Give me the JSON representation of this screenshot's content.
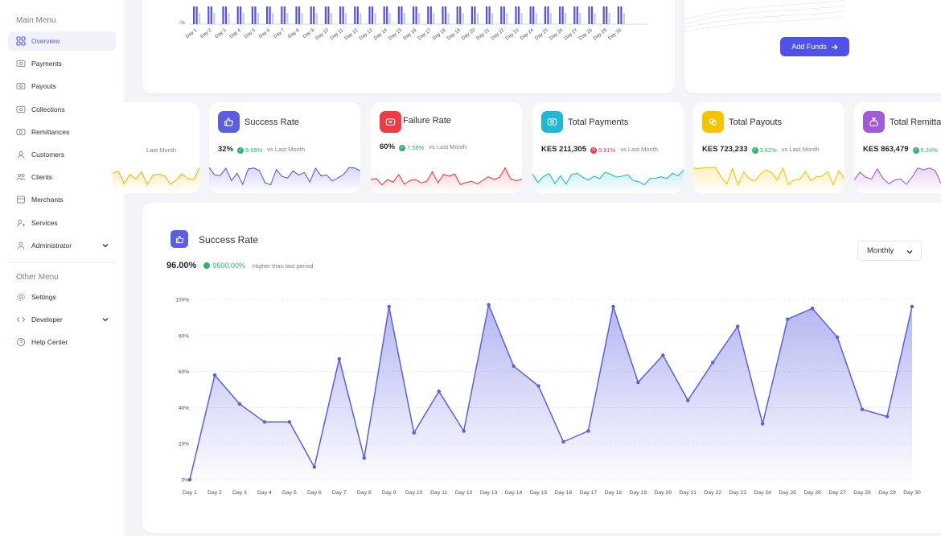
{
  "sidebar": {
    "main_menu_label": "Main Menu",
    "other_menu_label": "Other Menu",
    "items": [
      {
        "label": "Overview",
        "icon": "grid-icon"
      },
      {
        "label": "Payments",
        "icon": "payments-icon"
      },
      {
        "label": "Payouts",
        "icon": "payouts-icon"
      },
      {
        "label": "Collections",
        "icon": "collections-icon"
      },
      {
        "label": "Remittances",
        "icon": "remittances-icon"
      },
      {
        "label": "Customers",
        "icon": "customers-icon"
      },
      {
        "label": "Clients",
        "icon": "clients-icon"
      },
      {
        "label": "Merchants",
        "icon": "merchants-icon"
      },
      {
        "label": "Services",
        "icon": "services-icon"
      },
      {
        "label": "Administrator",
        "icon": "user-icon"
      }
    ],
    "other_items": [
      {
        "label": "Settings",
        "icon": "gear-icon"
      },
      {
        "label": "Developer",
        "icon": "code-icon"
      },
      {
        "label": "Help Center",
        "icon": "help-icon"
      }
    ]
  },
  "top_chart": {
    "y_tick": "0k",
    "days": [
      "Day 1",
      "Day 2",
      "Day 3",
      "Day 4",
      "Day 5",
      "Day 6",
      "Day 7",
      "Day 8",
      "Day 9",
      "Day 10",
      "Day 11",
      "Day 12",
      "Day 13",
      "Day 14",
      "Day 15",
      "Day 16",
      "Day 17",
      "Day 18",
      "Day 19",
      "Day 20",
      "Day 21",
      "Day 22",
      "Day 23",
      "Day 24",
      "Day 25",
      "Day 26",
      "Day 27",
      "Day 28",
      "Day 29",
      "Day 30"
    ]
  },
  "add_funds_label": "Add Funds",
  "stats": [
    {
      "title": "",
      "metric": "",
      "delta": "",
      "vs": "Last Month",
      "color": "#f5b301",
      "delta_color": "#2fb36b"
    },
    {
      "title": "Success Rate",
      "metric": "32%",
      "delta": "9.59%",
      "vs": "vs Last Month",
      "color": "#5a5fe0",
      "delta_color": "#2fb36b"
    },
    {
      "title": "Failure Rate",
      "metric": "60%",
      "delta": "7.58%",
      "vs": "vs Last Month",
      "color": "#ef3b46",
      "delta_color": "#2fb36b"
    },
    {
      "title": "Total Payments",
      "metric": "KES 211,305",
      "delta": "0.91%",
      "vs": "vs Last Month",
      "color": "#1fb9d1",
      "delta_color": "#ef3b46"
    },
    {
      "title": "Total Payouts",
      "metric": "KES 723,233",
      "delta": "3.62%",
      "vs": "vs Last Month",
      "color": "#f5c400",
      "delta_color": "#2fb36b"
    },
    {
      "title": "Total Remittances",
      "metric": "KES 863,479",
      "delta": "5.34%",
      "vs": "",
      "color": "#a25ad8",
      "delta_color": "#2fb36b"
    }
  ],
  "main": {
    "title": "Success Rate",
    "value": "96.00%",
    "delta": "9500.00%",
    "delta_sub": "Higher than last period",
    "period": "Monthly"
  },
  "chart_data": {
    "type": "area",
    "title": "Success Rate",
    "x": [
      "Day 1",
      "Day 2",
      "Day 3",
      "Day 4",
      "Day 5",
      "Day 6",
      "Day 7",
      "Day 8",
      "Day 9",
      "Day 10",
      "Day 11",
      "Day 12",
      "Day 13",
      "Day 14",
      "Day 15",
      "Day 16",
      "Day 17",
      "Day 18",
      "Day 19",
      "Day 20",
      "Day 21",
      "Day 22",
      "Day 23",
      "Day 24",
      "Day 25",
      "Day 26",
      "Day 27",
      "Day 28",
      "Day 29",
      "Day 30"
    ],
    "series": [
      {
        "values": [
          0,
          58,
          42,
          32,
          32,
          7,
          67,
          12,
          96,
          26,
          49,
          27,
          97,
          63,
          52,
          21,
          27,
          96,
          54,
          69,
          44,
          65,
          85,
          31,
          89,
          95,
          79,
          39,
          35,
          96
        ]
      }
    ],
    "y_ticks": [
      "0%",
      "20%",
      "40%",
      "60%",
      "80%",
      "100%"
    ],
    "ylim": [
      0,
      100
    ],
    "grid": true,
    "color": "#5a5fe0"
  }
}
